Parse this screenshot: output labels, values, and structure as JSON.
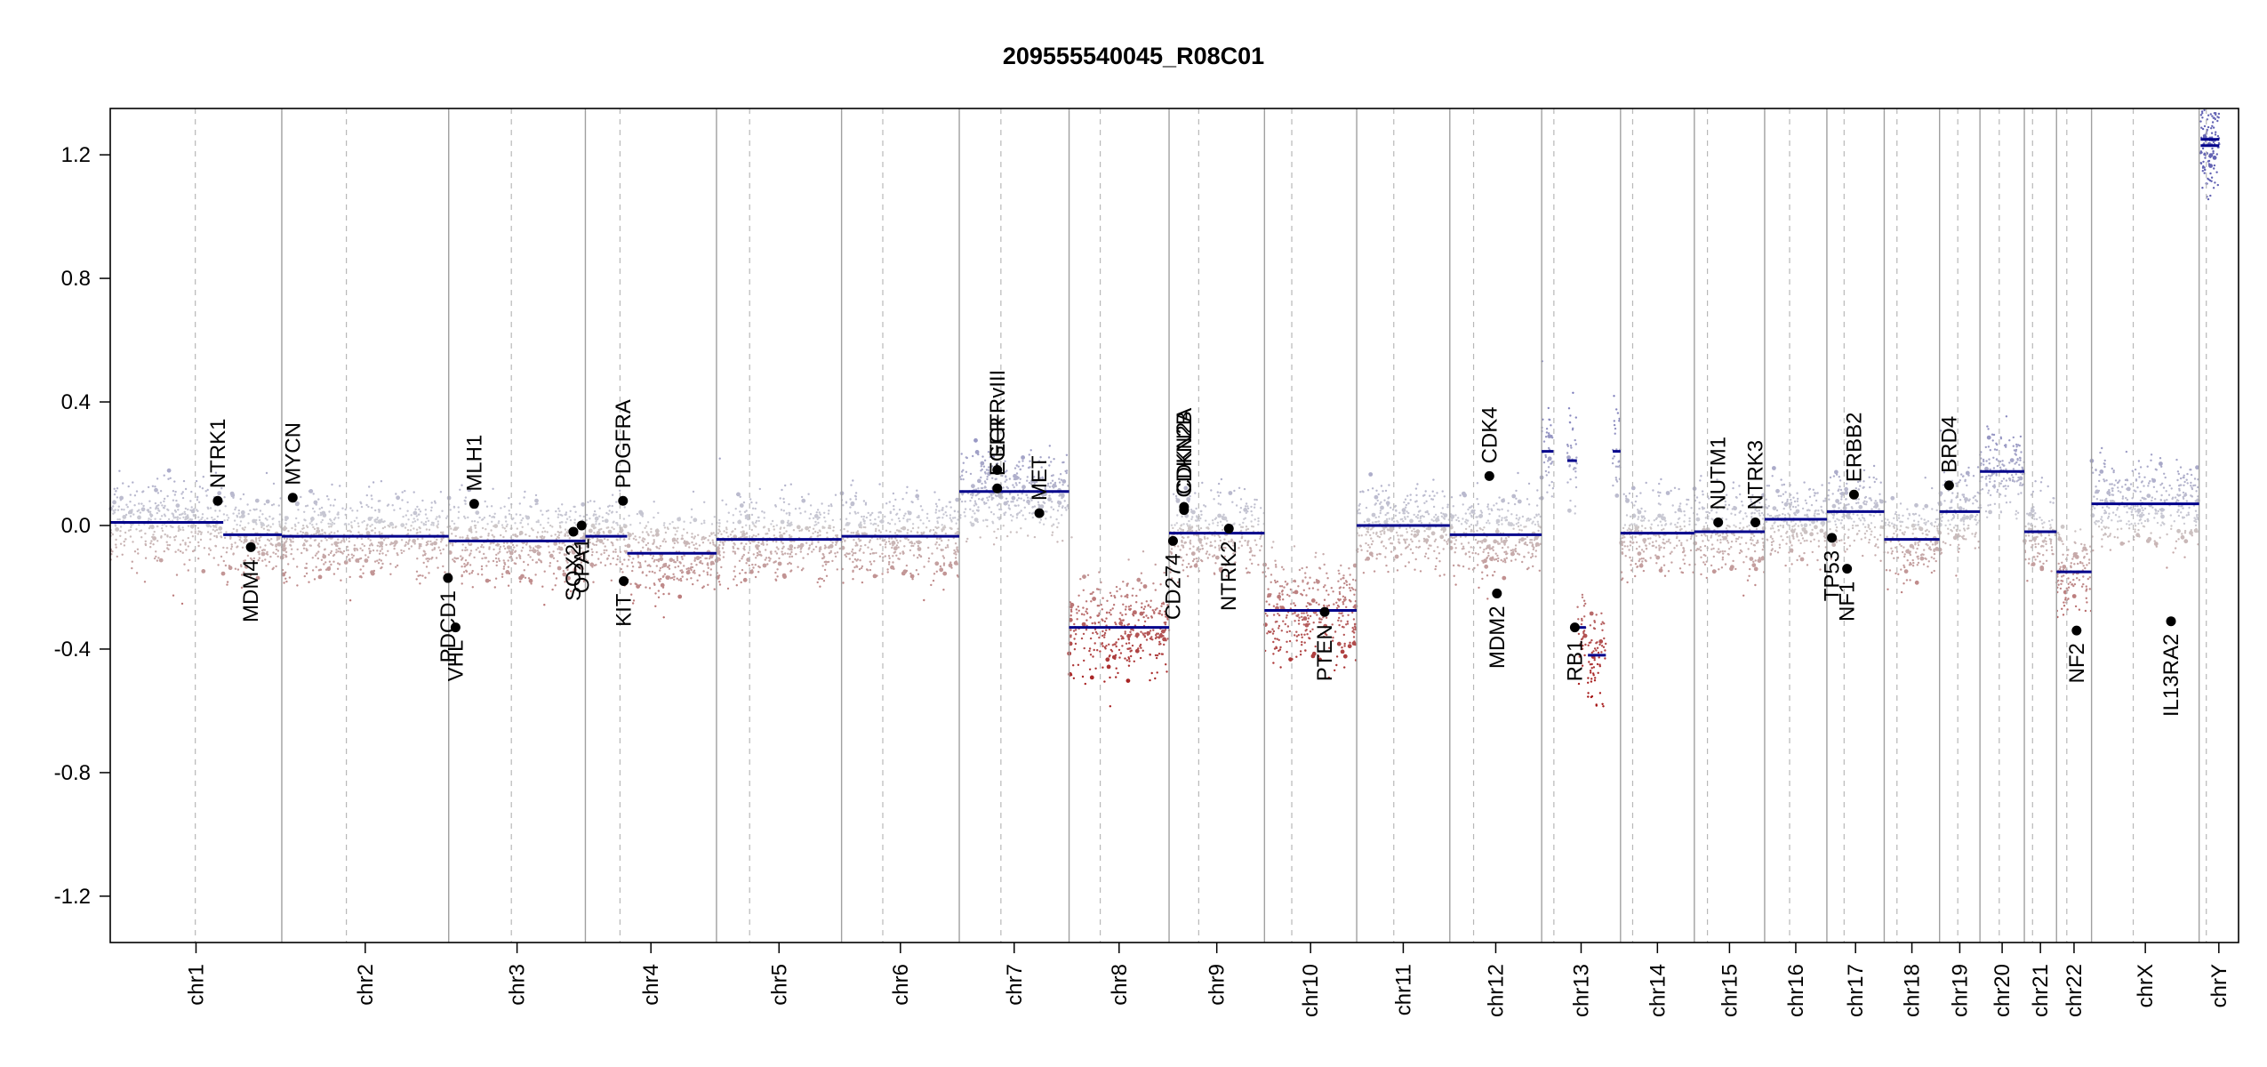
{
  "chart_data": {
    "type": "scatter",
    "title": "209555540045_R08C01",
    "xlabel": "",
    "ylabel": "",
    "ylim": [
      -1.35,
      1.35
    ],
    "y_ticks": [
      1.2,
      0.8,
      0.4,
      0.0,
      -0.4,
      -0.8,
      -1.2
    ],
    "y_tick_labels": [
      "1.2",
      "0.8",
      "0.4",
      "0.0",
      "-0.4",
      "-0.8",
      "-1.2"
    ],
    "grid": false,
    "colors": {
      "gain": "#6f6fb0",
      "loss": "#a01818",
      "neutral": "#c8c8c8",
      "segment": "#00008b",
      "border": "#999999"
    },
    "chromosomes": [
      {
        "name": "chr1",
        "start": 0.0,
        "end": 248.9,
        "centromere": 123.4
      },
      {
        "name": "chr2",
        "start": 248.9,
        "end": 491.1,
        "centromere": 342.6
      },
      {
        "name": "chr3",
        "start": 491.1,
        "end": 689.4,
        "centromere": 582.0
      },
      {
        "name": "chr4",
        "start": 689.4,
        "end": 879.6,
        "centromere": 739.6
      },
      {
        "name": "chr5",
        "start": 879.6,
        "end": 1061.1,
        "centromere": 927.7
      },
      {
        "name": "chr6",
        "start": 1061.1,
        "end": 1231.9,
        "centromere": 1120.9
      },
      {
        "name": "chr7",
        "start": 1231.9,
        "end": 1391.2,
        "centromere": 1292.3
      },
      {
        "name": "chr8",
        "start": 1391.2,
        "end": 1536.3,
        "centromere": 1436.4
      },
      {
        "name": "chr9",
        "start": 1536.3,
        "end": 1674.7,
        "centromere": 1579.3
      },
      {
        "name": "chr10",
        "start": 1674.7,
        "end": 1808.5,
        "centromere": 1714.3
      },
      {
        "name": "chr11",
        "start": 1808.5,
        "end": 1943.6,
        "centromere": 1862.3
      },
      {
        "name": "chr12",
        "start": 1943.6,
        "end": 2076.9,
        "centromere": 1978.1
      },
      {
        "name": "chr13",
        "start": 2076.9,
        "end": 2191.3,
        "centromere": 2094.6
      },
      {
        "name": "chr14",
        "start": 2191.3,
        "end": 2298.4,
        "centromere": 2208.9
      },
      {
        "name": "chr15",
        "start": 2298.4,
        "end": 2400.4,
        "centromere": 2317.4
      },
      {
        "name": "chr16",
        "start": 2400.4,
        "end": 2490.7,
        "centromere": 2436.6
      },
      {
        "name": "chr17",
        "start": 2490.7,
        "end": 2573.9,
        "centromere": 2515.7
      },
      {
        "name": "chr18",
        "start": 2573.9,
        "end": 2654.2,
        "centromere": 2592.4
      },
      {
        "name": "chr19",
        "start": 2654.2,
        "end": 2712.8,
        "centromere": 2680.6
      },
      {
        "name": "chr20",
        "start": 2712.8,
        "end": 2777.2,
        "centromere": 2740.8
      },
      {
        "name": "chr21",
        "start": 2777.2,
        "end": 2823.9,
        "centromere": 2789.1
      },
      {
        "name": "chr22",
        "start": 2823.9,
        "end": 2874.7,
        "centromere": 2838.8
      },
      {
        "name": "chrX",
        "start": 2874.7,
        "end": 3030.8,
        "centromere": 2935.2
      },
      {
        "name": "chrY",
        "start": 3030.8,
        "end": 3088.0,
        "centromere": 3041.2
      }
    ],
    "segments": [
      {
        "x0": 0.0,
        "x1": 164.0,
        "y": 0.01
      },
      {
        "x0": 164.0,
        "x1": 248.9,
        "y": -0.03
      },
      {
        "x0": 248.9,
        "x1": 491.1,
        "y": -0.035
      },
      {
        "x0": 491.1,
        "x1": 689.4,
        "y": -0.05
      },
      {
        "x0": 689.4,
        "x1": 750.0,
        "y": -0.035
      },
      {
        "x0": 750.0,
        "x1": 879.6,
        "y": -0.09
      },
      {
        "x0": 879.6,
        "x1": 1061.1,
        "y": -0.045
      },
      {
        "x0": 1061.1,
        "x1": 1231.9,
        "y": -0.035
      },
      {
        "x0": 1231.9,
        "x1": 1391.2,
        "y": 0.11
      },
      {
        "x0": 1391.2,
        "x1": 1536.3,
        "y": -0.33
      },
      {
        "x0": 1536.3,
        "x1": 1674.7,
        "y": -0.025
      },
      {
        "x0": 1674.7,
        "x1": 1808.5,
        "y": -0.275
      },
      {
        "x0": 1808.5,
        "x1": 1943.6,
        "y": 0.0
      },
      {
        "x0": 1943.6,
        "x1": 2076.9,
        "y": -0.03
      },
      {
        "x0": 2076.9,
        "x1": 2094.0,
        "y": 0.24
      },
      {
        "x0": 2114.0,
        "x1": 2128.0,
        "y": 0.21
      },
      {
        "x0": 2129.0,
        "x1": 2141.0,
        "y": -0.33
      },
      {
        "x0": 2144.0,
        "x1": 2170.0,
        "y": -0.42
      },
      {
        "x0": 2180.0,
        "x1": 2191.3,
        "y": 0.24
      },
      {
        "x0": 2191.3,
        "x1": 2298.4,
        "y": -0.025
      },
      {
        "x0": 2298.4,
        "x1": 2400.4,
        "y": -0.02
      },
      {
        "x0": 2400.4,
        "x1": 2490.7,
        "y": 0.02
      },
      {
        "x0": 2490.7,
        "x1": 2573.9,
        "y": 0.045
      },
      {
        "x0": 2573.9,
        "x1": 2654.2,
        "y": -0.045
      },
      {
        "x0": 2654.2,
        "x1": 2712.8,
        "y": 0.045
      },
      {
        "x0": 2712.8,
        "x1": 2777.2,
        "y": 0.175
      },
      {
        "x0": 2777.2,
        "x1": 2823.9,
        "y": -0.02
      },
      {
        "x0": 2823.9,
        "x1": 2874.7,
        "y": -0.15
      },
      {
        "x0": 2874.7,
        "x1": 3030.8,
        "y": 0.07
      },
      {
        "x0": 3033.0,
        "x1": 3060.0,
        "y": 1.23
      },
      {
        "x0": 3033.0,
        "x1": 3060.0,
        "y": 1.25
      }
    ],
    "genes": [
      {
        "name": "NTRK1",
        "x": 156.0,
        "y": 0.08,
        "label_side": "up"
      },
      {
        "name": "MDM4",
        "x": 204.0,
        "y": -0.07,
        "label_side": "down"
      },
      {
        "name": "MYCN",
        "x": 264.8,
        "y": 0.09,
        "label_side": "up"
      },
      {
        "name": "PDCD1",
        "x": 490.0,
        "y": -0.17,
        "label_side": "down"
      },
      {
        "name": "VHL",
        "x": 501.0,
        "y": -0.33,
        "label_side": "down"
      },
      {
        "name": "MLH1",
        "x": 528.0,
        "y": 0.07,
        "label_side": "up"
      },
      {
        "name": "SOX2",
        "x": 672.0,
        "y": -0.02,
        "label_side": "down"
      },
      {
        "name": "OPA1",
        "x": 684.0,
        "y": 0.0,
        "label_side": "down"
      },
      {
        "name": "PDGFRA",
        "x": 744.0,
        "y": 0.08,
        "label_side": "up"
      },
      {
        "name": "KIT",
        "x": 745.0,
        "y": -0.18,
        "label_side": "down"
      },
      {
        "name": "EGFRvIII",
        "x": 1287.0,
        "y": 0.18,
        "label_side": "up"
      },
      {
        "name": "EGFR",
        "x": 1287.0,
        "y": 0.12,
        "label_side": "up"
      },
      {
        "name": "MET",
        "x": 1348.0,
        "y": 0.04,
        "label_side": "up"
      },
      {
        "name": "CD274",
        "x": 1542.0,
        "y": -0.05,
        "label_side": "down"
      },
      {
        "name": "CDKN2A",
        "x": 1558.0,
        "y": 0.06,
        "label_side": "up"
      },
      {
        "name": "CDKN2B",
        "x": 1558.0,
        "y": 0.05,
        "label_side": "up"
      },
      {
        "name": "NTRK2",
        "x": 1623.0,
        "y": -0.01,
        "label_side": "down"
      },
      {
        "name": "PTEN",
        "x": 1762.0,
        "y": -0.28,
        "label_side": "down"
      },
      {
        "name": "CDK4",
        "x": 2001.0,
        "y": 0.16,
        "label_side": "up"
      },
      {
        "name": "MDM2",
        "x": 2012.0,
        "y": -0.22,
        "label_side": "down"
      },
      {
        "name": "RB1",
        "x": 2125.0,
        "y": -0.33,
        "label_side": "down"
      },
      {
        "name": "NUTM1",
        "x": 2333.0,
        "y": 0.01,
        "label_side": "up"
      },
      {
        "name": "NTRK3",
        "x": 2387.0,
        "y": 0.01,
        "label_side": "up"
      },
      {
        "name": "TP53",
        "x": 2498.0,
        "y": -0.04,
        "label_side": "down"
      },
      {
        "name": "NF1",
        "x": 2520.0,
        "y": -0.14,
        "label_side": "down"
      },
      {
        "name": "ERBB2",
        "x": 2530.0,
        "y": 0.1,
        "label_side": "up"
      },
      {
        "name": "BRD4",
        "x": 2668.0,
        "y": 0.13,
        "label_side": "up"
      },
      {
        "name": "NF2",
        "x": 2853.0,
        "y": -0.34,
        "label_side": "down"
      },
      {
        "name": "IL13RA2",
        "x": 2990.0,
        "y": -0.31,
        "label_side": "down"
      }
    ]
  }
}
